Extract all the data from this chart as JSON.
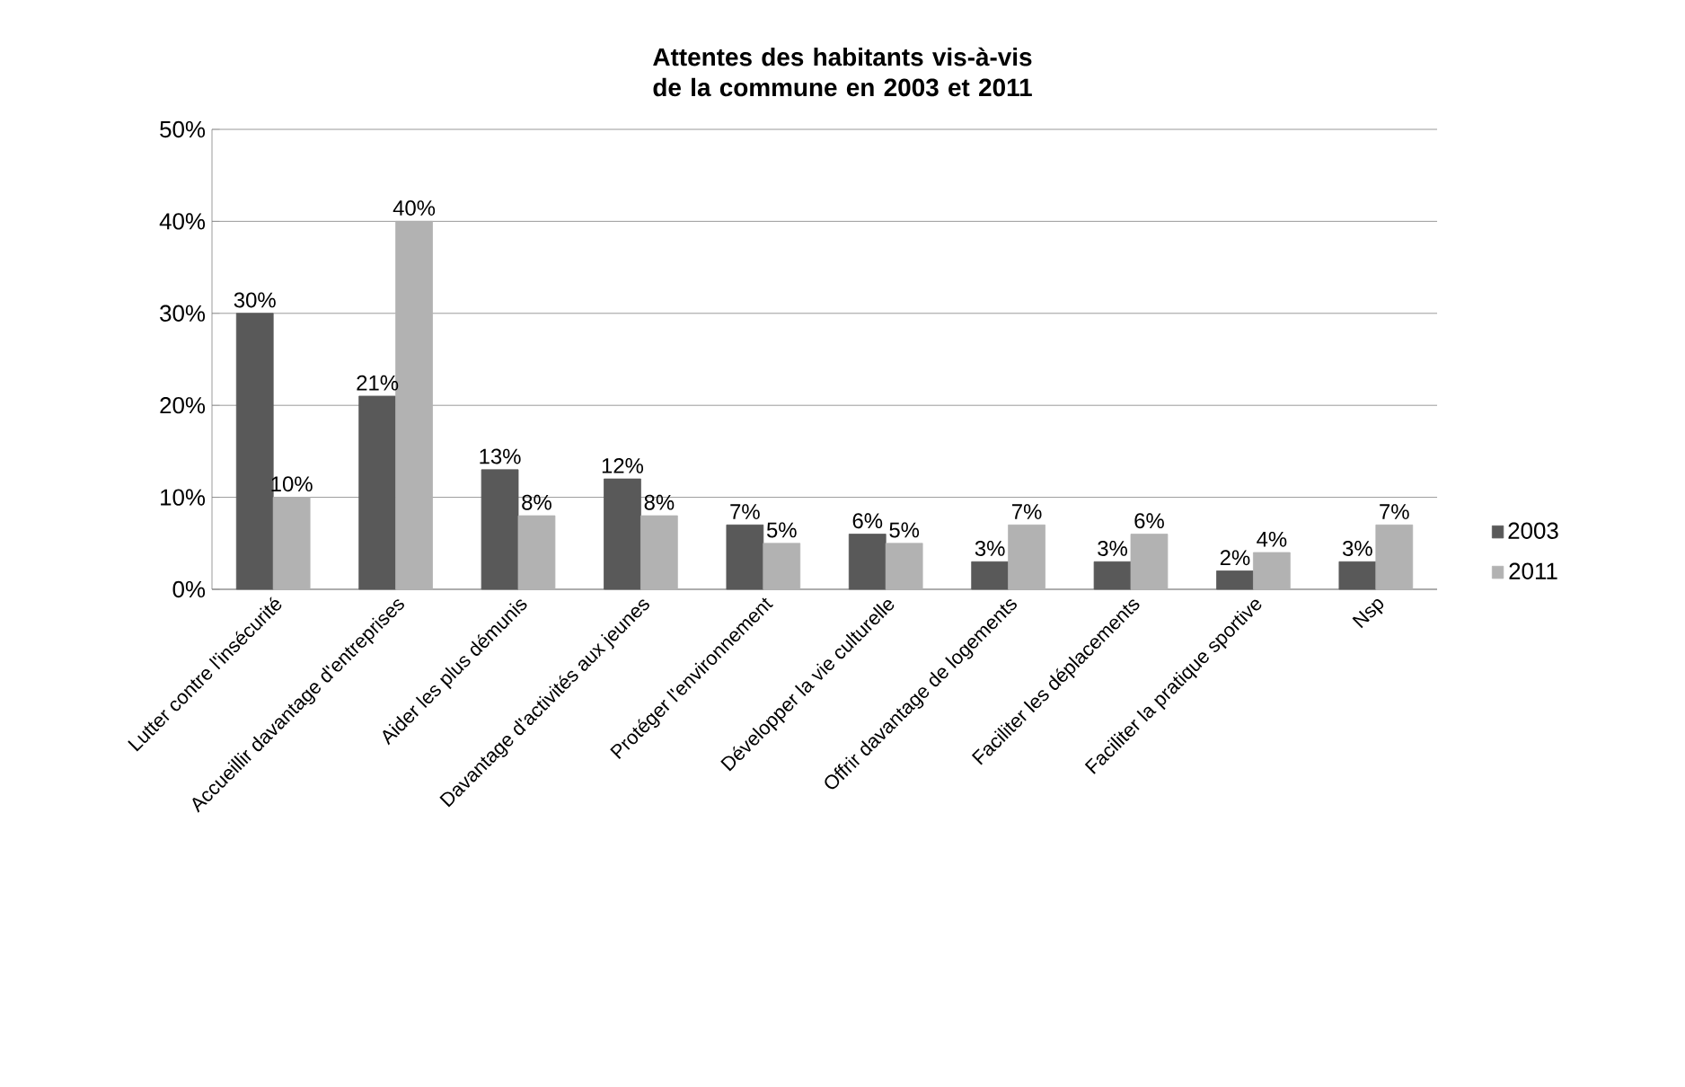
{
  "chart_data": {
    "type": "bar",
    "title": "Attentes des habitants vis-à-vis de la commune en 2003 et 2011",
    "categories": [
      "Lutter contre l'insécurité",
      "Accueillir davantage d'entreprises",
      "Aider les plus démunis",
      "Davantage d'activités aux jeunes",
      "Protéger l'environnement",
      "Développer la vie culturelle",
      "Offrir davantage de logements",
      "Faciliter les déplacements",
      "Faciliter la pratique sportive",
      "Nsp"
    ],
    "series": [
      {
        "name": "2003",
        "color": "#595959",
        "values": [
          30,
          21,
          13,
          12,
          7,
          6,
          3,
          3,
          2,
          3
        ],
        "value_labels": [
          "30%",
          "21%",
          "13%",
          "12%",
          "7%",
          "6%",
          "3%",
          "3%",
          "2%",
          "3%"
        ]
      },
      {
        "name": "2011",
        "color": "#b2b2b2",
        "values": [
          10,
          40,
          8,
          8,
          5,
          5,
          7,
          6,
          4,
          7
        ],
        "value_labels": [
          "10%",
          "40%",
          "8%",
          "8%",
          "5%",
          "5%",
          "7%",
          "6%",
          "4%",
          "7%"
        ]
      }
    ],
    "ylim": [
      0,
      50
    ],
    "yticks": [
      {
        "value": 0,
        "label": "0%"
      },
      {
        "value": 10,
        "label": "10%"
      },
      {
        "value": 20,
        "label": "20%"
      },
      {
        "value": 30,
        "label": "30%"
      },
      {
        "value": 40,
        "label": "40%"
      },
      {
        "value": 50,
        "label": "50%"
      }
    ],
    "grid": "y",
    "legend": "right"
  }
}
